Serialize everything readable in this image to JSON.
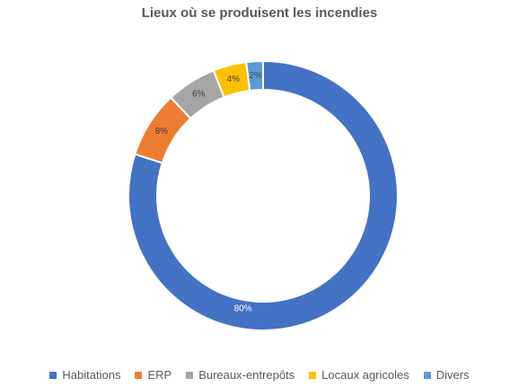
{
  "chart_data": {
    "type": "pie",
    "variant": "donut",
    "title": "Lieux où se produisent les incendies",
    "categories": [
      "Habitations",
      "ERP",
      "Bureaux-entrepôts",
      "Locaux agricoles",
      "Divers"
    ],
    "values": [
      80,
      8,
      6,
      4,
      2
    ],
    "data_labels": [
      "80%",
      "8%",
      "6%",
      "4%",
      "2%"
    ],
    "colors": [
      "#4472C4",
      "#ED7D31",
      "#A5A5A5",
      "#FFC000",
      "#5B9BD5"
    ],
    "legend": "bottom"
  }
}
